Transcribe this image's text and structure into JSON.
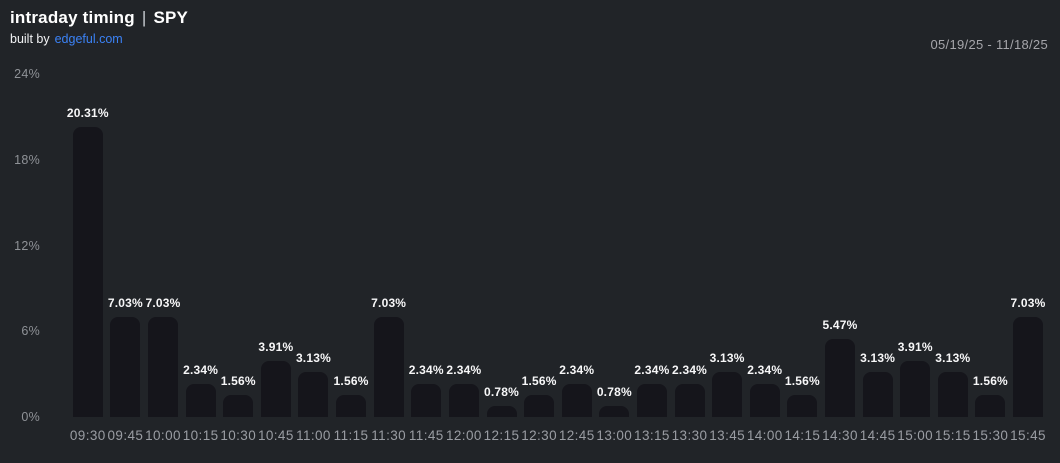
{
  "header": {
    "title_main": "intraday timing",
    "title_separator": "|",
    "title_symbol": "SPY",
    "built_by_prefix": "built by",
    "built_by_link": "edgeful.com",
    "date_range": "05/19/25 - 11/18/25"
  },
  "colors": {
    "background": "#212428",
    "bar": "#15151b",
    "accent_blue": "#3b82f6",
    "value_label": "#f7f7f8",
    "axis_label": "#9a9da3"
  },
  "chart_data": {
    "type": "bar",
    "title": "intraday timing | SPY",
    "subtitle": "built by edgeful.com",
    "annotation": "05/19/25 - 11/18/25",
    "categories": [
      "09:30",
      "09:45",
      "10:00",
      "10:15",
      "10:30",
      "10:45",
      "11:00",
      "11:15",
      "11:30",
      "11:45",
      "12:00",
      "12:15",
      "12:30",
      "12:45",
      "13:00",
      "13:15",
      "13:30",
      "13:45",
      "14:00",
      "14:15",
      "14:30",
      "14:45",
      "15:00",
      "15:15",
      "15:30",
      "15:45"
    ],
    "values": [
      20.31,
      7.03,
      7.03,
      2.34,
      1.56,
      3.91,
      3.13,
      1.56,
      7.03,
      2.34,
      2.34,
      0.78,
      1.56,
      2.34,
      0.78,
      2.34,
      2.34,
      3.13,
      2.34,
      1.56,
      5.47,
      3.13,
      3.91,
      3.13,
      1.56,
      7.03
    ],
    "value_labels": [
      "20.31%",
      "7.03%",
      "7.03%",
      "2.34%",
      "1.56%",
      "3.91%",
      "3.13%",
      "1.56%",
      "7.03%",
      "2.34%",
      "2.34%",
      "0.78%",
      "1.56%",
      "2.34%",
      "0.78%",
      "2.34%",
      "2.34%",
      "3.13%",
      "2.34%",
      "1.56%",
      "5.47%",
      "3.13%",
      "3.91%",
      "3.13%",
      "1.56%",
      "7.03%"
    ],
    "xlabel": "",
    "ylabel": "",
    "y_ticks": [
      "24%",
      "18%",
      "12%",
      "6%",
      "0%"
    ],
    "ylim": [
      0,
      24
    ],
    "grid": false,
    "legend": false
  }
}
